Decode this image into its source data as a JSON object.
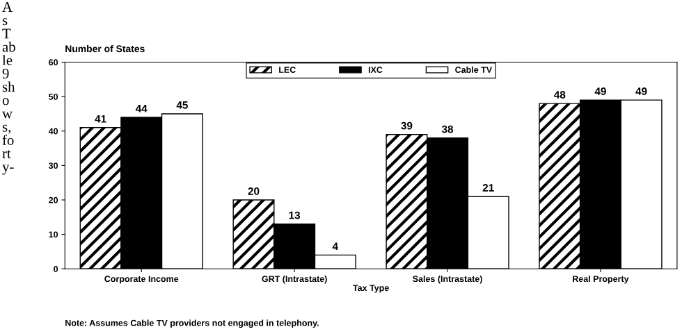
{
  "chart_data": {
    "type": "bar",
    "ylabel": "Number of States",
    "xlabel": "Tax Type",
    "categories": [
      "Corporate Income",
      "GRT (Intrastate)",
      "Sales (Intrastate)",
      "Real Property"
    ],
    "series": [
      {
        "name": "LEC",
        "color": "#000000",
        "values": [
          41,
          20,
          39,
          48
        ]
      },
      {
        "name": "IXC",
        "color": "#000000",
        "values": [
          44,
          13,
          38,
          49
        ]
      },
      {
        "name": "Cable TV",
        "color": "#ffffff",
        "values": [
          45,
          4,
          21,
          49
        ]
      }
    ],
    "ylim": [
      0,
      60
    ],
    "yticks": [
      0,
      10,
      20,
      30,
      40,
      50,
      60
    ],
    "grid": false,
    "legend": "top",
    "data_labels": true,
    "annotations": [
      "Note: Assumes Cable TV providers not engaged in telephony.",
      "A\ns\nT\nab\nle\n9\nsh\no\nw\ns,\nfo\nrt\ny-"
    ]
  }
}
